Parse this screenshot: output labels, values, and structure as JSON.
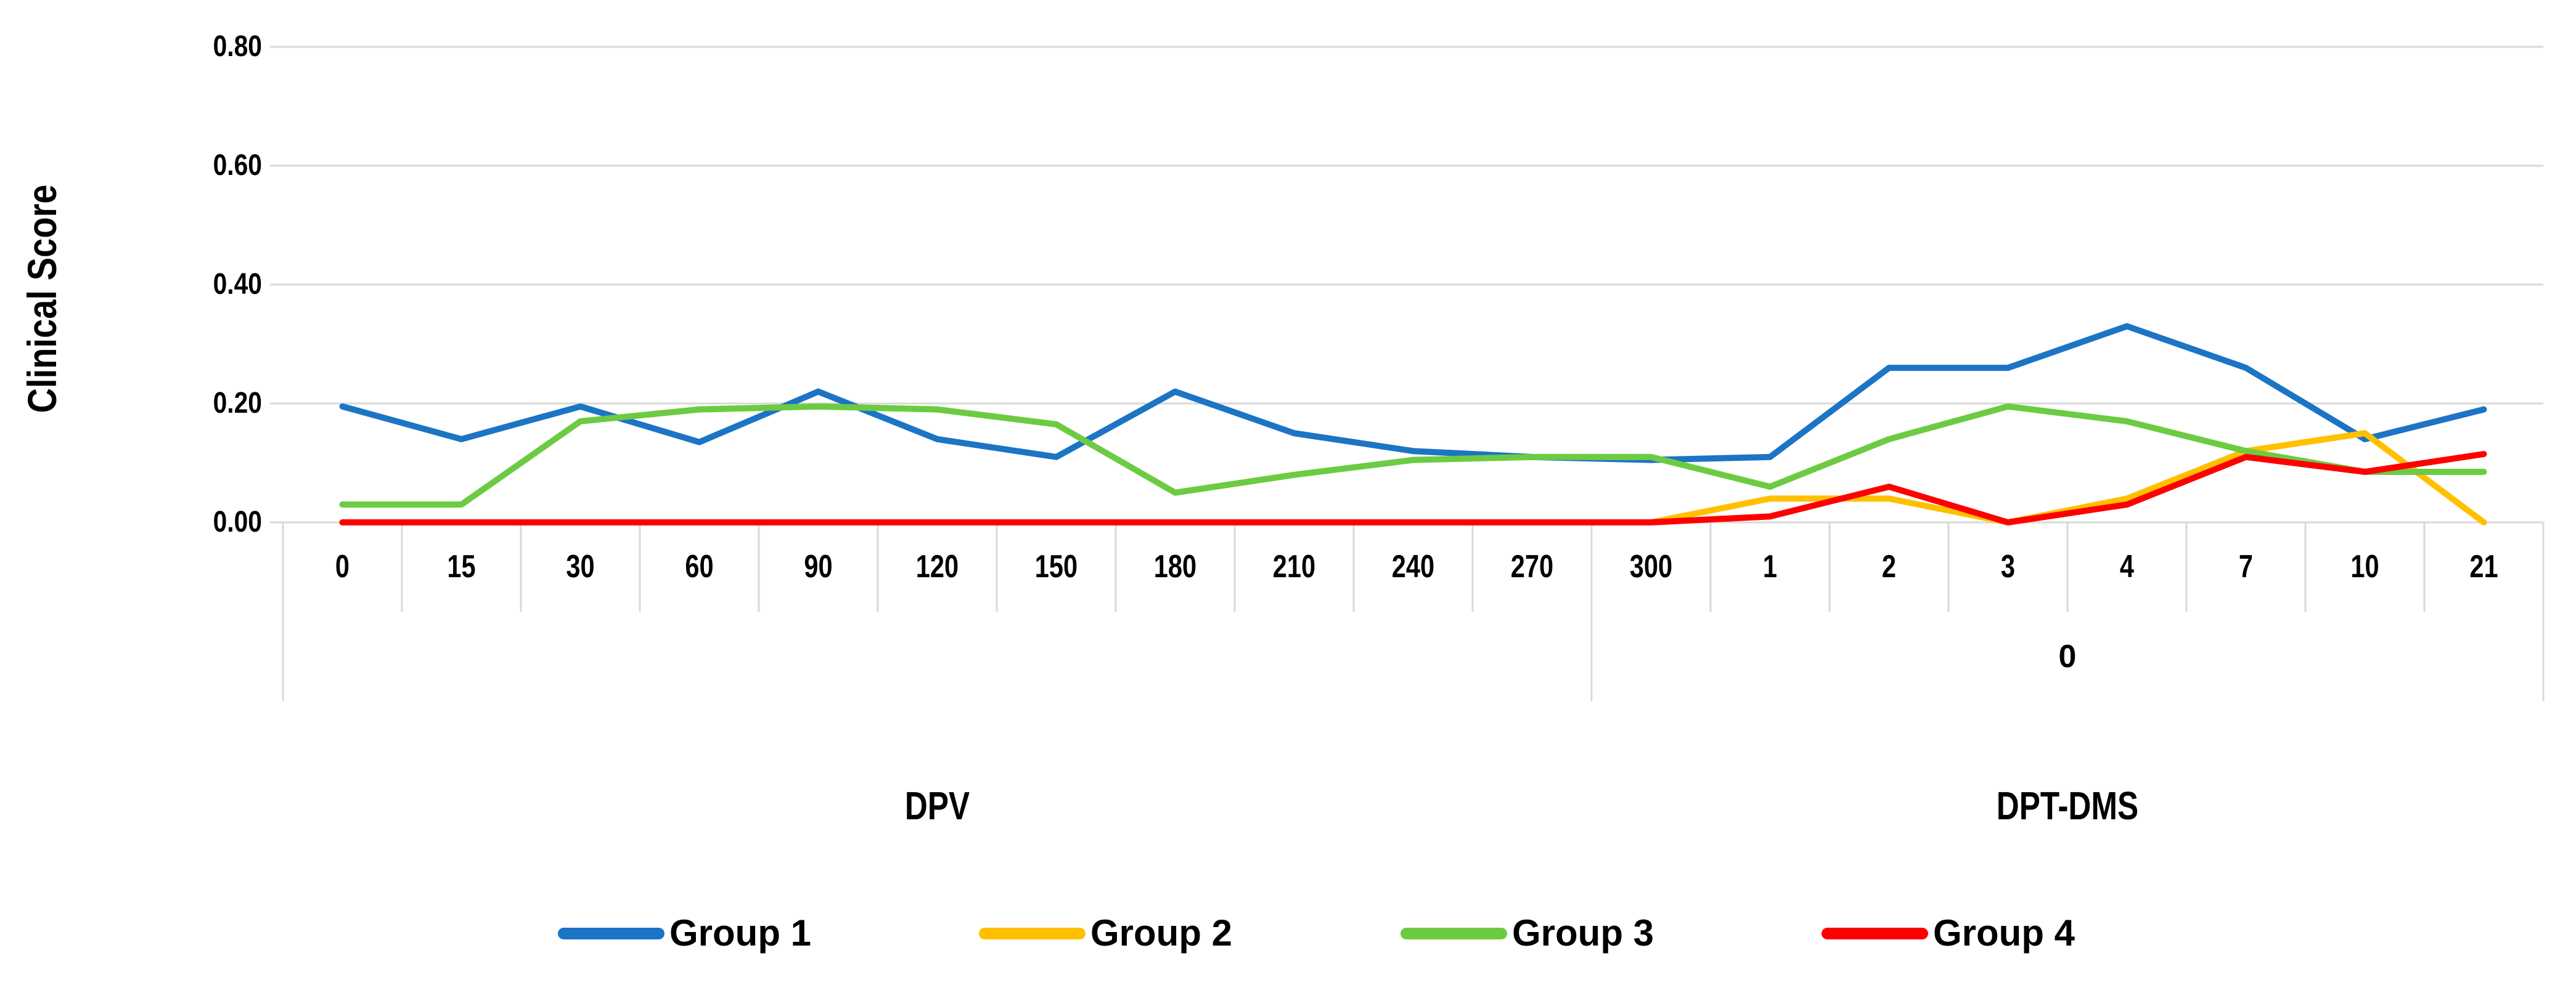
{
  "chart_data": {
    "type": "line",
    "title": "",
    "ylabel": "Clinical Score",
    "xlabel": "",
    "ylim": [
      0,
      0.8
    ],
    "grid": true,
    "grid_color": "#D9D9D9",
    "legend_position": "bottom",
    "ytick_labels": [
      "0.00",
      "0.20",
      "0.40",
      "0.60",
      "0.80"
    ],
    "ytick_values": [
      0,
      0.2,
      0.4,
      0.6,
      0.8
    ],
    "categories": [
      "0",
      "15",
      "30",
      "60",
      "90",
      "120",
      "150",
      "180",
      "210",
      "240",
      "270",
      "300",
      "1",
      "2",
      "3",
      "4",
      "7",
      "10",
      "21"
    ],
    "category_groups": [
      {
        "label": "DPV",
        "start": 0,
        "end": 11,
        "sub_label": ""
      },
      {
        "label": "DPT-DMS",
        "start": 11,
        "end": 19,
        "sub_label": "0"
      }
    ],
    "series": [
      {
        "name": "Group 1",
        "color": "#1C74C5",
        "values": [
          0.195,
          0.14,
          0.195,
          0.135,
          0.22,
          0.14,
          0.11,
          0.22,
          0.15,
          0.12,
          0.11,
          0.105,
          0.11,
          0.26,
          0.26,
          0.33,
          0.26,
          0.14,
          0.19
        ]
      },
      {
        "name": "Group 2",
        "color": "#FFC000",
        "values": [
          0,
          0,
          0,
          0,
          0,
          0,
          0,
          0,
          0,
          0,
          0,
          0,
          0.04,
          0.04,
          0,
          0.04,
          0.12,
          0.15,
          0
        ]
      },
      {
        "name": "Group 3",
        "color": "#6CCB42",
        "values": [
          0.03,
          0.03,
          0.17,
          0.19,
          0.195,
          0.19,
          0.165,
          0.05,
          0.08,
          0.105,
          0.11,
          0.11,
          0.06,
          0.14,
          0.195,
          0.17,
          0.12,
          0.085,
          0.085
        ]
      },
      {
        "name": "Group 4",
        "color": "#FF0000",
        "values": [
          0,
          0,
          0,
          0,
          0,
          0,
          0,
          0,
          0,
          0,
          0,
          0,
          0.01,
          0.06,
          0,
          0.03,
          0.11,
          0.085,
          0.115
        ]
      }
    ]
  }
}
